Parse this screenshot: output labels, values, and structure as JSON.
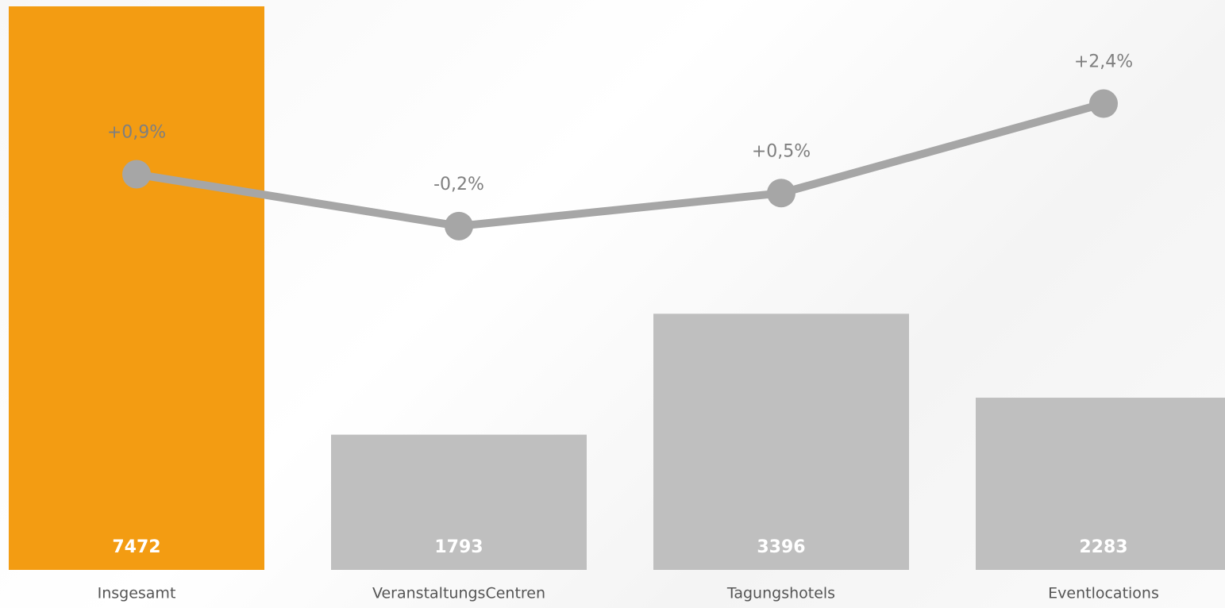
{
  "chart_data": {
    "type": "bar",
    "categories": [
      "Insgesamt",
      "VeranstaltungsCentren",
      "Tagungshotels",
      "Eventlocations"
    ],
    "series": [
      {
        "type": "bar",
        "values": [
          7472,
          1793,
          3396,
          2283
        ],
        "colors": [
          "#f39c12",
          "#bfbfbf",
          "#bfbfbf",
          "#bfbfbf"
        ]
      },
      {
        "type": "line",
        "axis": "y2",
        "color": "#a6a6a6",
        "values": [
          0.9,
          -0.2,
          0.5,
          2.4
        ],
        "value_labels": [
          "+0,9%",
          "-0,2%",
          "+0,5%",
          "+2,4%"
        ]
      }
    ],
    "ylim": [
      0,
      7556
    ],
    "y2lim": [
      -7.5,
      4.6
    ]
  }
}
